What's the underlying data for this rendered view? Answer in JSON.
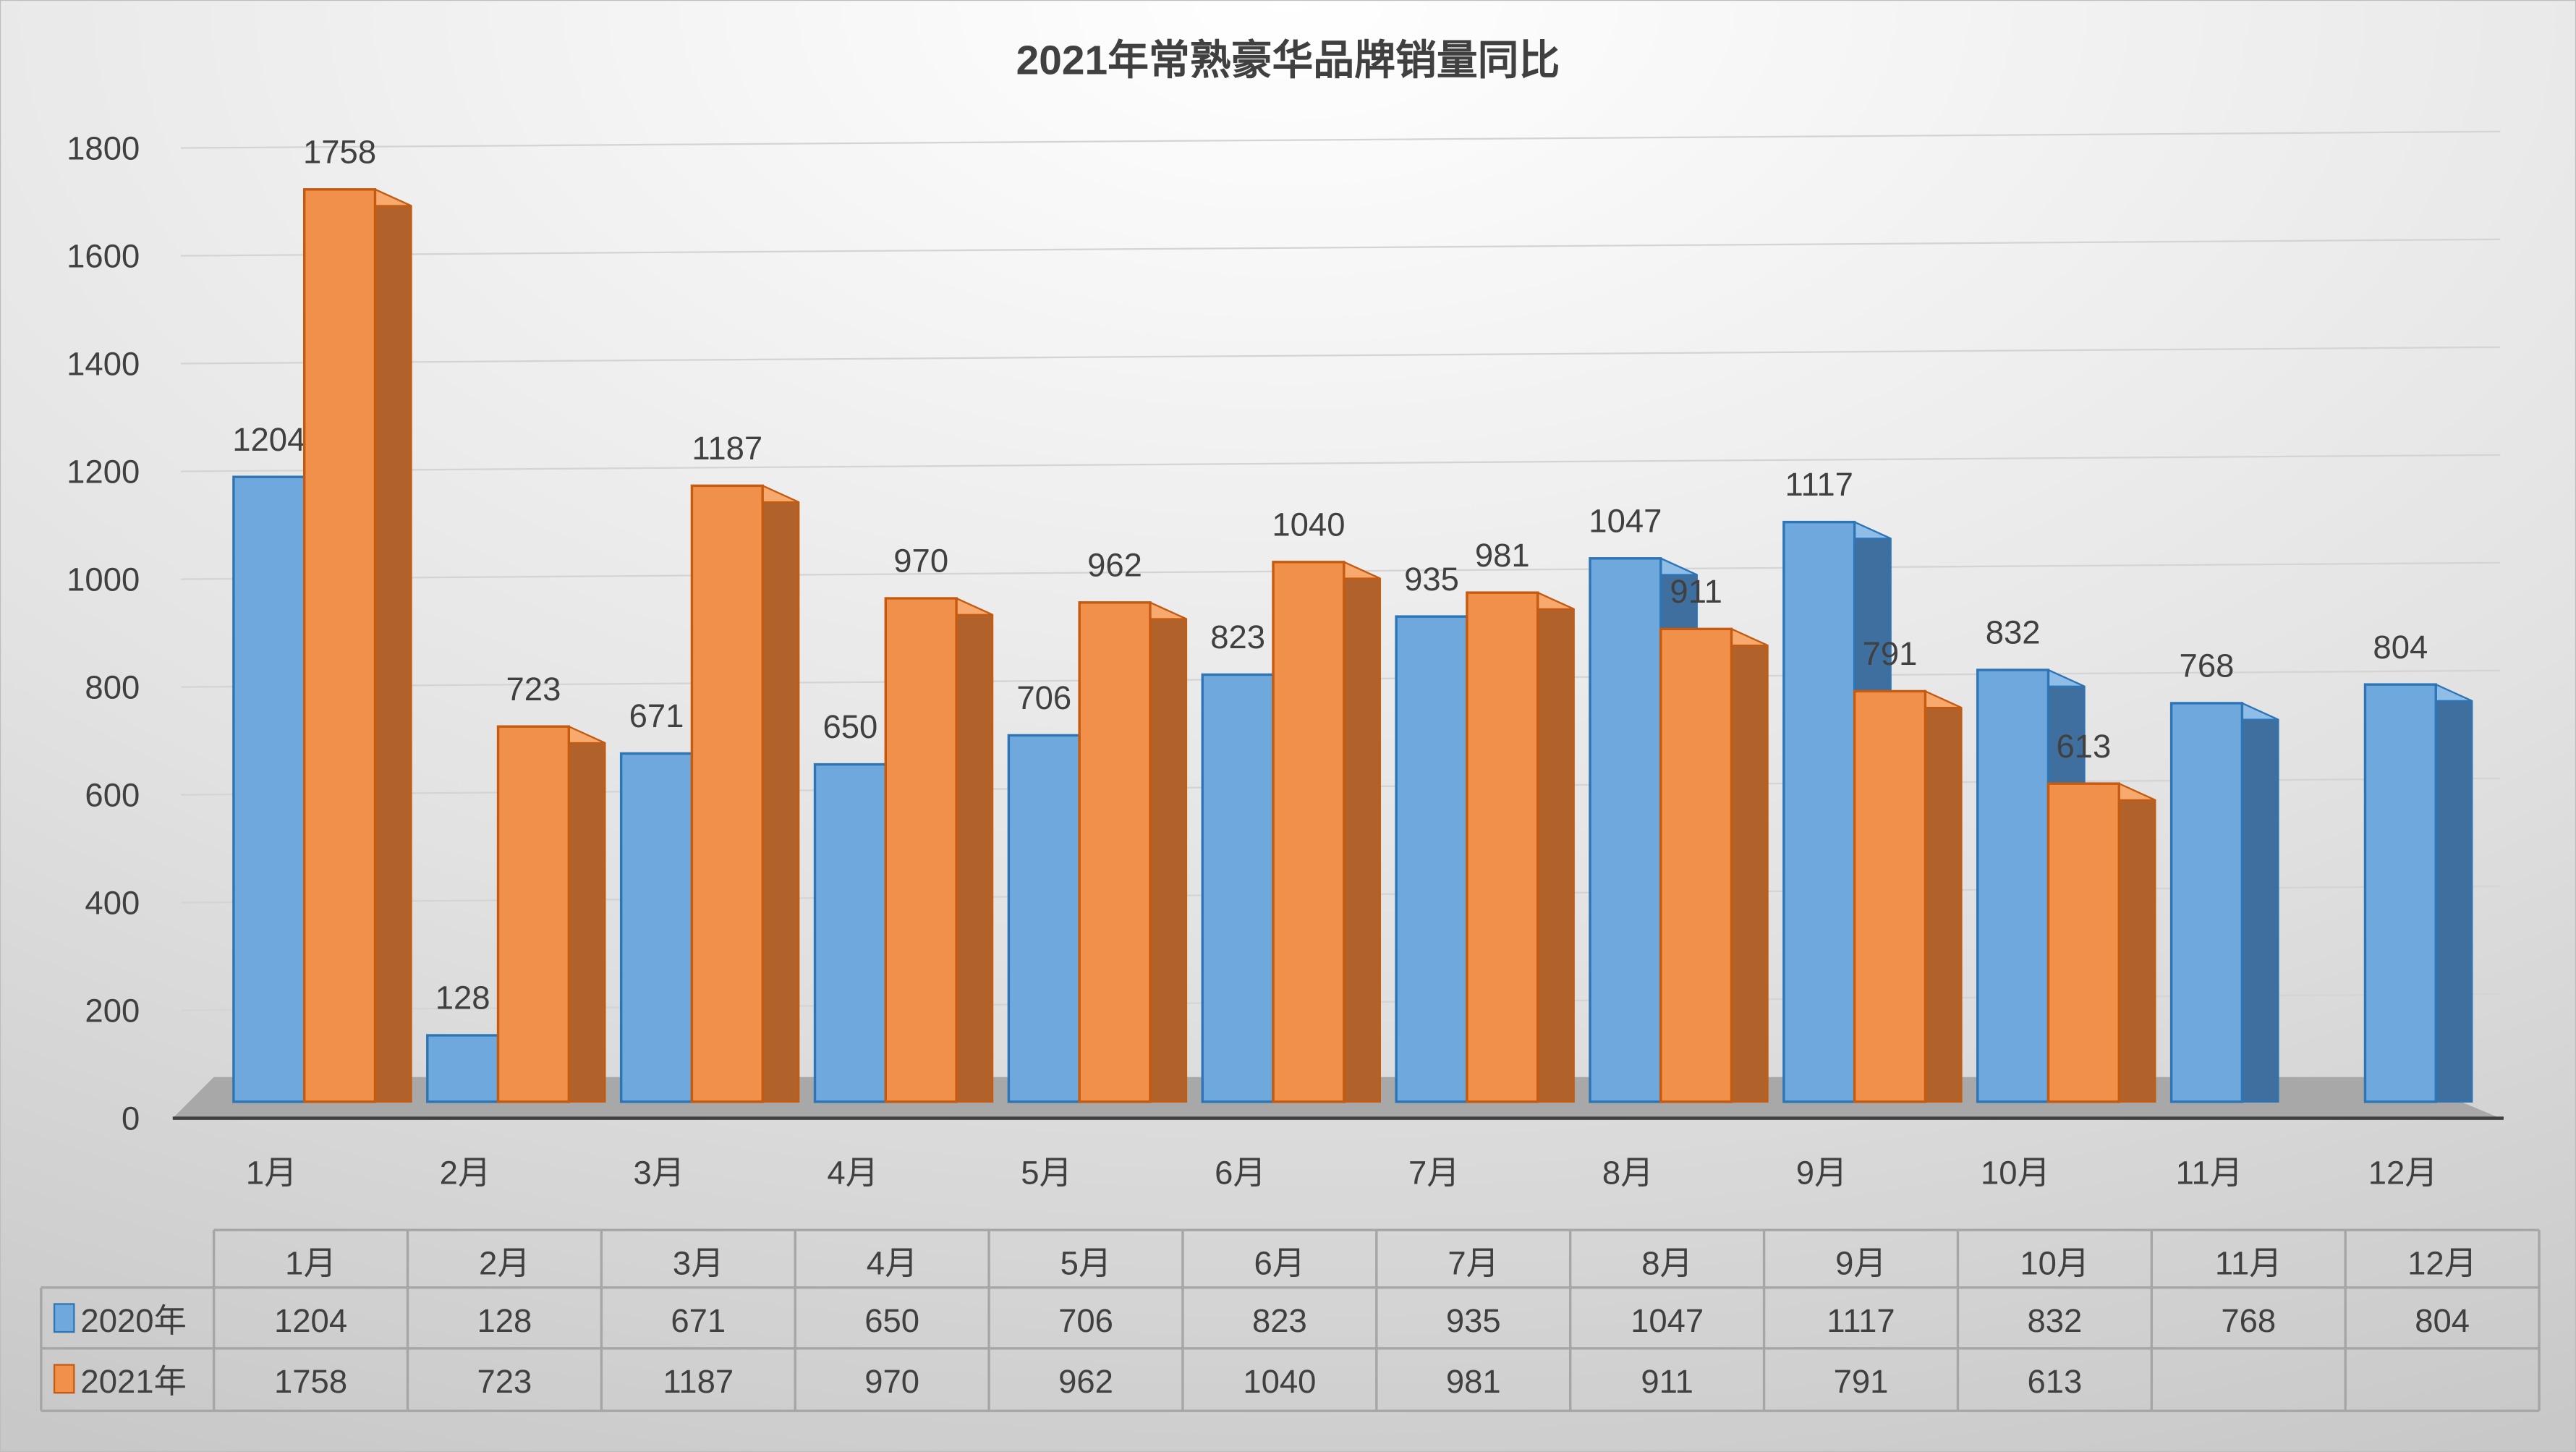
{
  "chart_data": {
    "type": "bar",
    "title": "2021年常熟豪华品牌销量同比",
    "categories": [
      "1月",
      "2月",
      "3月",
      "4月",
      "5月",
      "6月",
      "7月",
      "8月",
      "9月",
      "10月",
      "11月",
      "12月"
    ],
    "series": [
      {
        "name": "2020年",
        "color": "#6FA8DC",
        "values": [
          1204,
          128,
          671,
          650,
          706,
          823,
          935,
          1047,
          1117,
          832,
          768,
          804
        ]
      },
      {
        "name": "2021年",
        "color": "#F0904A",
        "values": [
          1758,
          723,
          1187,
          970,
          962,
          1040,
          981,
          911,
          791,
          613,
          null,
          null
        ]
      }
    ],
    "ylim": [
      0,
      1800
    ],
    "yticks": [
      0,
      200,
      400,
      600,
      800,
      1000,
      1200,
      1400,
      1600,
      1800
    ],
    "xlabel": "",
    "ylabel": "",
    "grid": true,
    "legend": "data-table-bottom",
    "data_table": true
  }
}
